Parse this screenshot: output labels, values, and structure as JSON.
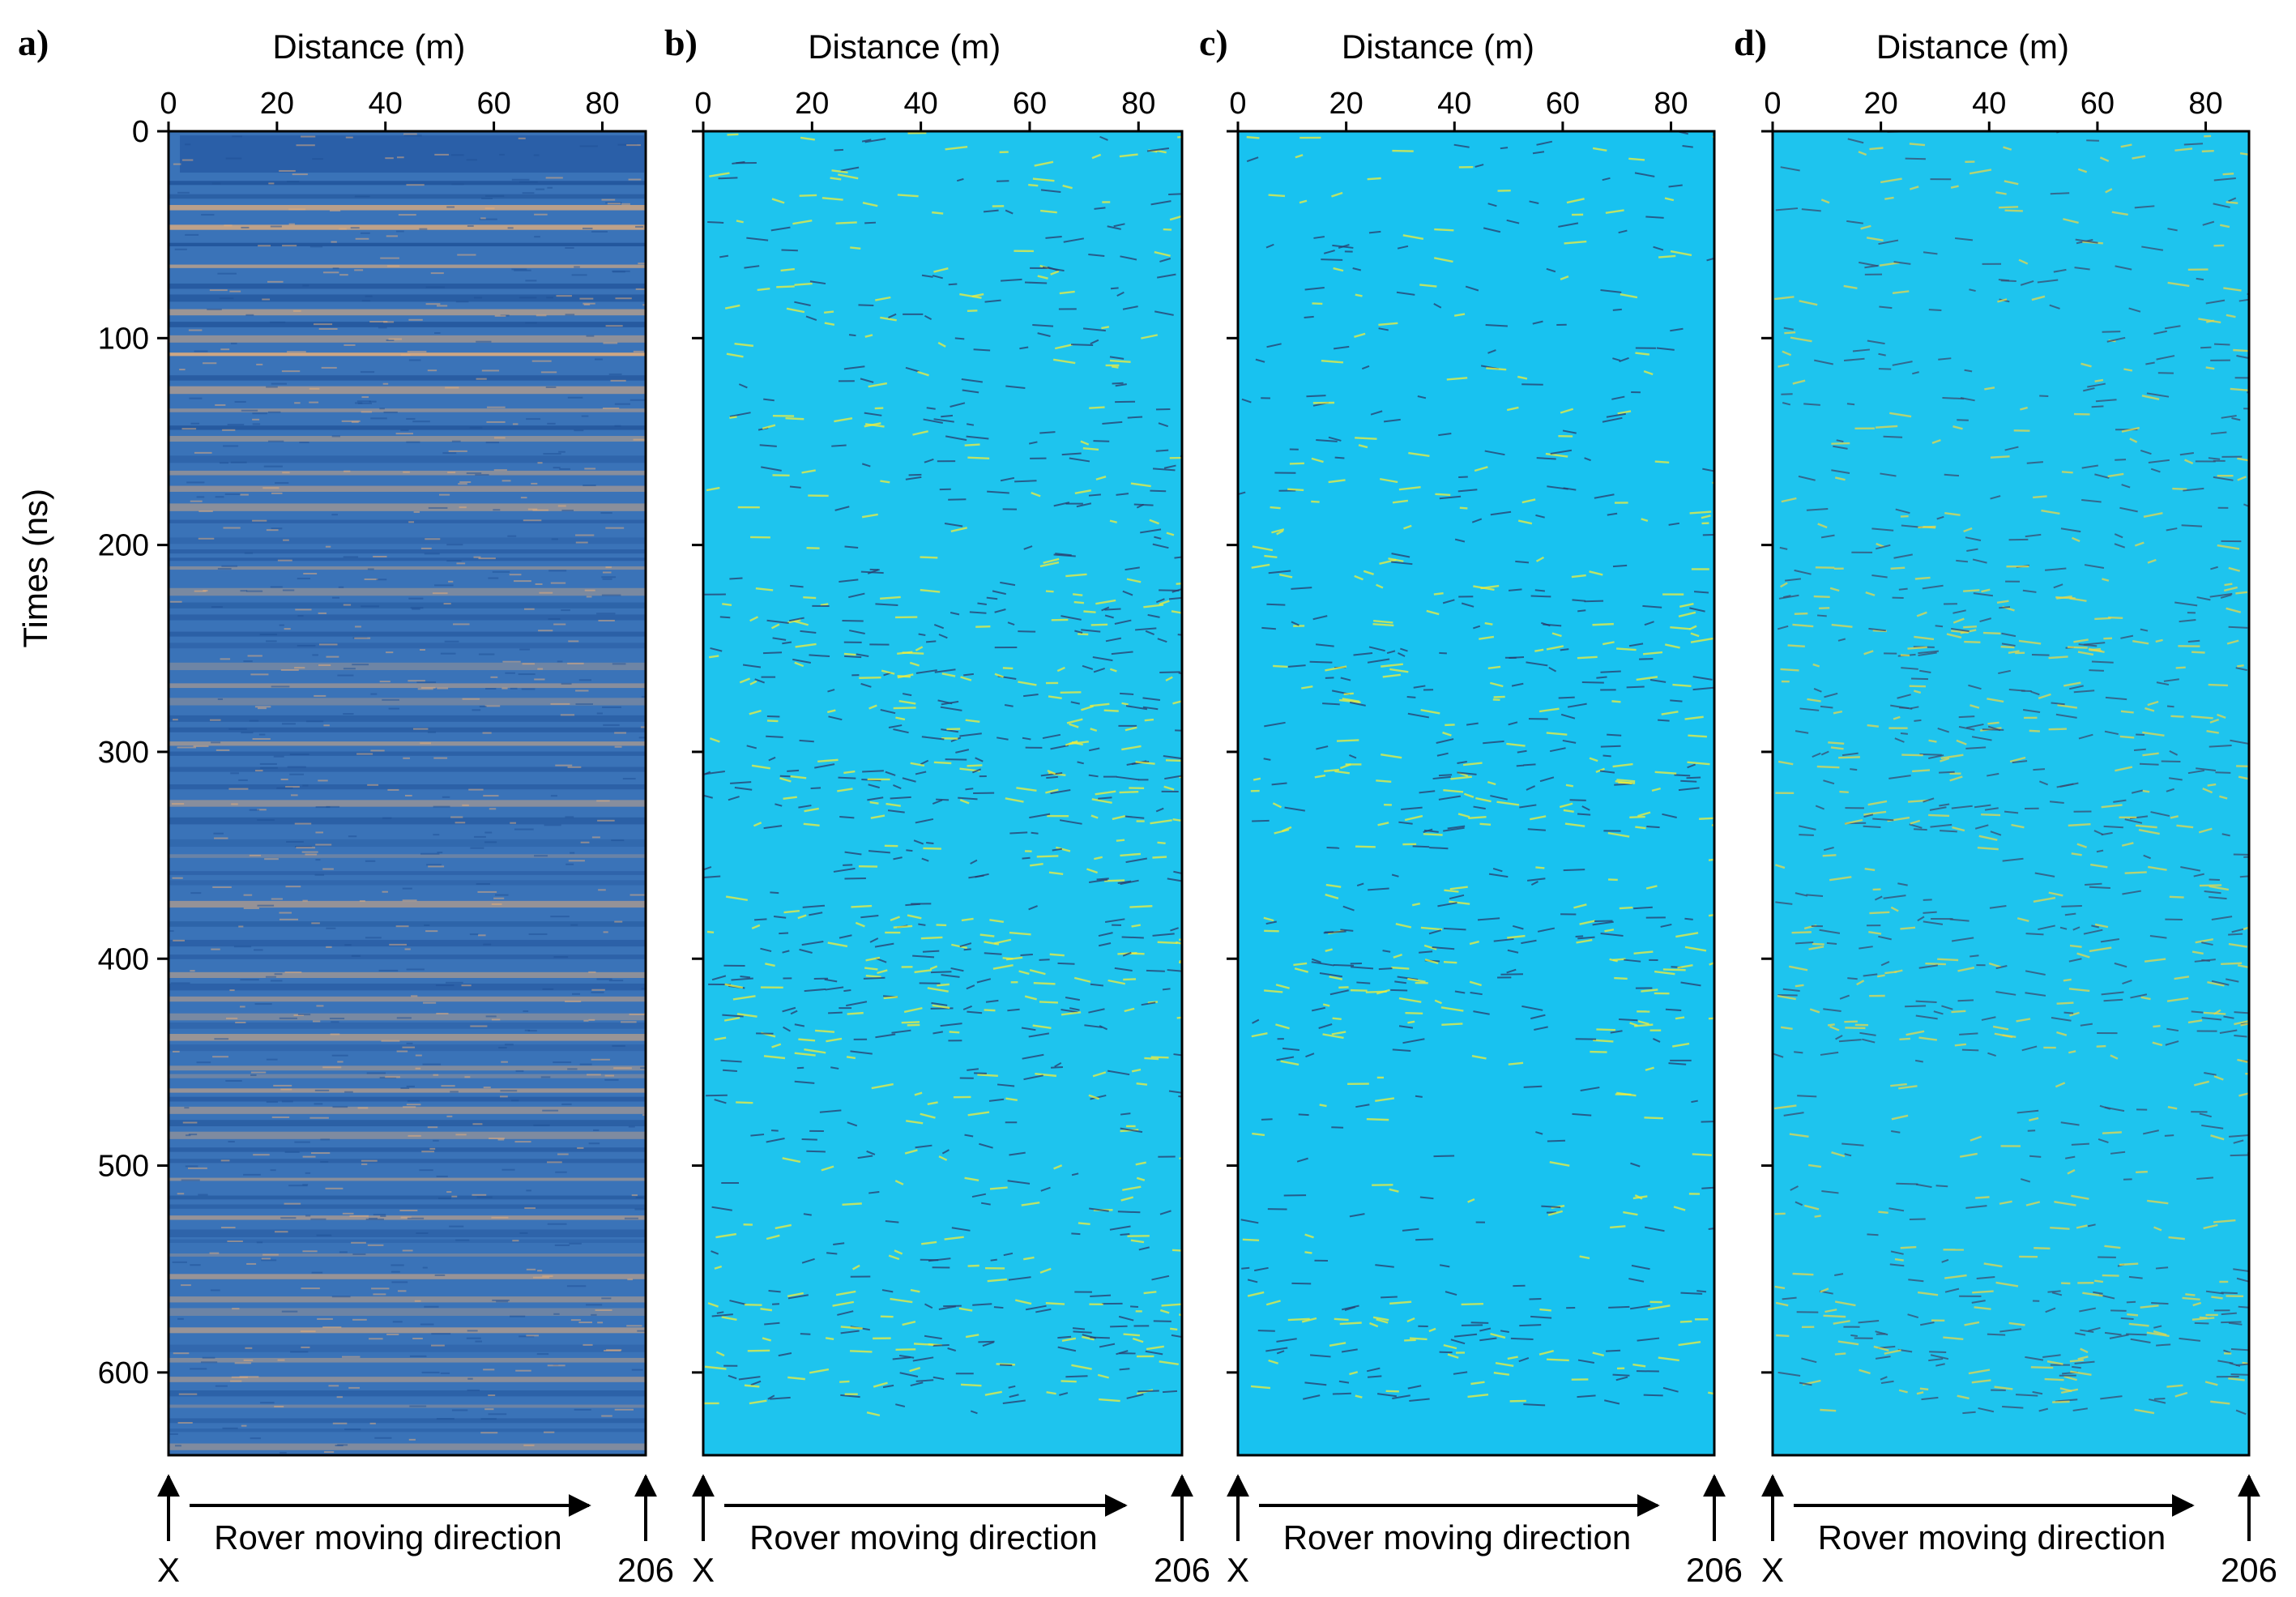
{
  "chart_data": [
    {
      "type": "heatmap",
      "panel_label": "a)",
      "xlabel": "Distance (m)",
      "ylabel": "Times (ns)",
      "xlim": [
        0,
        88
      ],
      "ylim": [
        0,
        640
      ],
      "x_ticks": [
        0,
        20,
        40,
        60,
        80
      ],
      "y_ticks": [
        0,
        100,
        200,
        300,
        400,
        500,
        600
      ],
      "start_label": "X",
      "end_label": "206",
      "direction_label": "Rover moving direction",
      "palette": {
        "background": "#3a73b8",
        "positive": "#e9b07a",
        "negative": "#1e4f96"
      },
      "banding": "strong horizontal banding"
    },
    {
      "type": "heatmap",
      "panel_label": "b)",
      "xlabel": "Distance (m)",
      "xlim": [
        0,
        88
      ],
      "ylim": [
        0,
        640
      ],
      "x_ticks": [
        0,
        20,
        40,
        60,
        80
      ],
      "y_ticks": [
        0,
        100,
        200,
        300,
        400,
        500,
        600
      ],
      "start_label": "X",
      "end_label": "206",
      "direction_label": "Rover moving direction",
      "palette": {
        "background": "#1ec4ee",
        "positive": "#f2ee3a",
        "negative": "#2a3a6a"
      }
    },
    {
      "type": "heatmap",
      "panel_label": "c)",
      "xlabel": "Distance (m)",
      "xlim": [
        0,
        88
      ],
      "ylim": [
        0,
        640
      ],
      "x_ticks": [
        0,
        20,
        40,
        60,
        80
      ],
      "y_ticks": [
        0,
        100,
        200,
        300,
        400,
        500,
        600
      ],
      "start_label": "X",
      "end_label": "206",
      "direction_label": "Rover moving direction",
      "palette": {
        "background": "#18c2f0",
        "positive": "#f2ee3a",
        "negative": "#2a3a6a"
      }
    },
    {
      "type": "heatmap",
      "panel_label": "d)",
      "xlabel": "Distance (m)",
      "xlim": [
        0,
        88
      ],
      "ylim": [
        0,
        640
      ],
      "x_ticks": [
        0,
        20,
        40,
        60,
        80
      ],
      "y_ticks": [
        0,
        100,
        200,
        300,
        400,
        500,
        600
      ],
      "start_label": "X",
      "end_label": "206",
      "direction_label": "Rover moving direction",
      "palette": {
        "background": "#1ec4ee",
        "positive": "#e8d84a",
        "negative": "#3a4a6e"
      }
    }
  ]
}
